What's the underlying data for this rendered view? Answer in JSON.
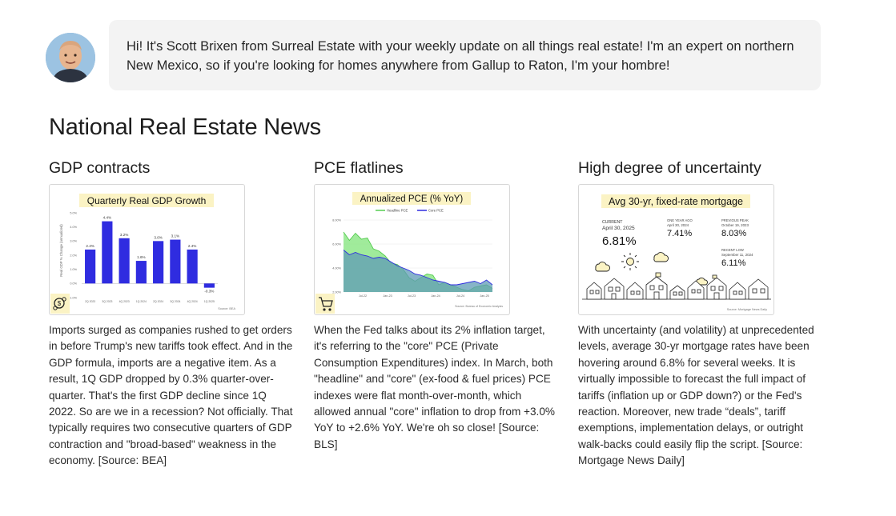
{
  "intro": {
    "avatar_icon": "person-avatar",
    "message": "Hi! It's Scott Brixen from Surreal Estate with your weekly update on all things real estate! I'm an expert on northern New Mexico, so if you're looking for homes anywhere from Gallup to Raton, I'm your hombre!"
  },
  "section_title": "National Real Estate News",
  "articles": [
    {
      "heading": "GDP contracts",
      "body": "Imports surged as companies rushed to get orders in before Trump's new tariffs took effect. And in the GDP formula, imports are a negative item. As a result, 1Q GDP dropped by 0.3% quarter-over-quarter. That's the first GDP decline since 1Q 2022. So are we in a recession? Not officially. That typically requires two consecutive quarters of GDP contraction and \"broad-based\" weakness in the economy. [Source: BEA]"
    },
    {
      "heading": "PCE flatlines",
      "body": "When the Fed talks about its 2% inflation target, it's referring to the \"core\" PCE (Private Consumption Expenditures) index. In March, both \"headline\" and \"core\" (ex-food & fuel prices) PCE indexes were flat month-over-month, which allowed annual \"core\" inflation to drop from +3.0% YoY to +2.6% YoY. We're oh so close! [Source: BLS]"
    },
    {
      "heading": "High degree of uncertainty",
      "body": "With uncertainty (and volatility) at unprecedented levels, average 30-yr mortgage rates have been hovering around 6.8% for several weeks. It is virtually impossible to forecast the full impact of tariffs (inflation up or GDP down?) or the Fed's reaction. Moreover, new trade “deals”, tariff exemptions, implementation delays, or outright walk-backs could easily flip the script. [Source: Mortgage News Daily]"
    }
  ],
  "chart_data": [
    {
      "type": "bar",
      "title": "Quarterly Real GDP Growth",
      "ylabel": "Real GDP % Change (annualized)",
      "categories": [
        "2Q 2023",
        "3Q 2023",
        "4Q 2023",
        "1Q 2024",
        "2Q 2024",
        "3Q 2024",
        "4Q 2024",
        "1Q 2025"
      ],
      "values": [
        2.4,
        4.4,
        3.2,
        1.6,
        3.0,
        3.1,
        2.4,
        -0.3
      ],
      "value_labels": [
        "2.4%",
        "4.4%",
        "3.2%",
        "1.6%",
        "3.0%",
        "3.1%",
        "2.4%",
        "-0.3%"
      ],
      "ytick_labels": [
        "5.0%",
        "4.0%",
        "3.0%",
        "2.0%",
        "1.0%",
        "0.0%",
        "-1.0%"
      ],
      "ylim": [
        -1,
        5
      ],
      "source": "Source: BEA",
      "colors": {
        "bar": "#2f2ce0",
        "title_highlight": "#fbf3c4"
      },
      "corner_icon": "coins-icon"
    },
    {
      "type": "area",
      "title": "Annualized PCE (% YoY)",
      "legend": "top",
      "series": [
        {
          "name": "Headline PCE",
          "color": "#8fe88a",
          "values": [
            7.0,
            6.3,
            6.9,
            6.4,
            6.5,
            5.6,
            5.4,
            5.0,
            4.4,
            4.3,
            3.9,
            3.2,
            2.9,
            3.2,
            3.5,
            3.4,
            2.6,
            2.8,
            2.6,
            2.4,
            2.2,
            2.1,
            2.4,
            2.5,
            2.6,
            2.3
          ]
        },
        {
          "name": "Core PCE",
          "color": "#2f2ce0",
          "values": [
            5.5,
            5.1,
            5.3,
            5.1,
            5.0,
            4.8,
            4.9,
            4.8,
            4.5,
            4.2,
            4.0,
            3.8,
            3.5,
            3.4,
            3.2,
            3.0,
            2.9,
            2.8,
            2.6,
            2.6,
            2.7,
            2.8,
            2.9,
            2.7,
            3.0,
            2.6
          ]
        }
      ],
      "x_ticks": [
        "Jul-22",
        "Jan-23",
        "Jul-23",
        "Jan-24",
        "Jul-24",
        "Jan-25"
      ],
      "ytick_labels": [
        "8.00%",
        "6.00%",
        "4.00%",
        "2.00%"
      ],
      "ylim": [
        2,
        8
      ],
      "source": "Source: Bureau of Economic Analysis",
      "corner_icon": "shopping-cart-icon"
    },
    {
      "type": "table",
      "title": "Avg 30-yr, fixed-rate mortgage",
      "current": {
        "label": "CURRENT",
        "date": "April 30, 2025",
        "value": "6.81%"
      },
      "year_ago": {
        "label": "ONE YEAR AGO",
        "date": "April 30, 2024",
        "value": "7.41%"
      },
      "previous_peak": {
        "label": "PREVIOUS PEAK",
        "date": "October 19, 2023",
        "value": "8.03%"
      },
      "recent_low": {
        "label": "RECENT LOW",
        "date": "September 11, 2024",
        "value": "6.11%"
      },
      "source": "Source: Mortgage News Daily",
      "icons": [
        "cloud-icon",
        "sun-icon",
        "cloud-icon",
        "cloud-icon",
        "houses-icon"
      ]
    }
  ]
}
